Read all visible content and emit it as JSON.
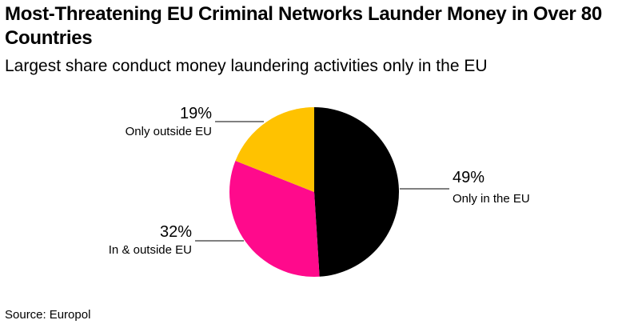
{
  "header": {
    "title": "Most-Threatening EU Criminal Networks Launder Money in Over 80 Countries",
    "subtitle": "Largest share conduct money laundering activities only in the EU"
  },
  "footer": {
    "source_prefix": "Source:",
    "source_name": "Europol"
  },
  "chart_data": {
    "type": "pie",
    "title": "Most-Threatening EU Criminal Networks Launder Money in Over 80 Countries",
    "subtitle": "Largest share conduct money laundering activities only in the EU",
    "slices": [
      {
        "label": "Only in the EU",
        "value": 49,
        "value_label": "49%",
        "color": "#000000"
      },
      {
        "label": "In & outside EU",
        "value": 32,
        "value_label": "32%",
        "color": "#ff0a8c"
      },
      {
        "label": "Only outside EU",
        "value": 19,
        "value_label": "19%",
        "color": "#ffc200"
      }
    ],
    "legend": "none",
    "source": "Europol"
  }
}
